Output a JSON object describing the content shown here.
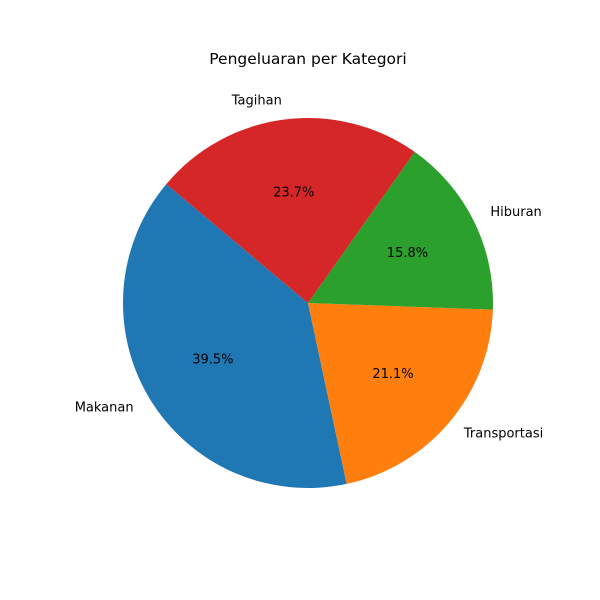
{
  "chart_data": {
    "type": "pie",
    "title": "Pengeluaran per Kategori",
    "start_angle_deg": 140,
    "direction": "counterclockwise",
    "slices": [
      {
        "label": "Makanan",
        "value": 39.5,
        "pct_label": "39.5%",
        "color": "#1f77b4"
      },
      {
        "label": "Transportasi",
        "value": 21.1,
        "pct_label": "21.1%",
        "color": "#ff7f0e"
      },
      {
        "label": "Hiburan",
        "value": 15.8,
        "pct_label": "15.8%",
        "color": "#2ca02c"
      },
      {
        "label": "Tagihan",
        "value": 23.7,
        "pct_label": "23.7%",
        "color": "#d62728"
      }
    ]
  }
}
